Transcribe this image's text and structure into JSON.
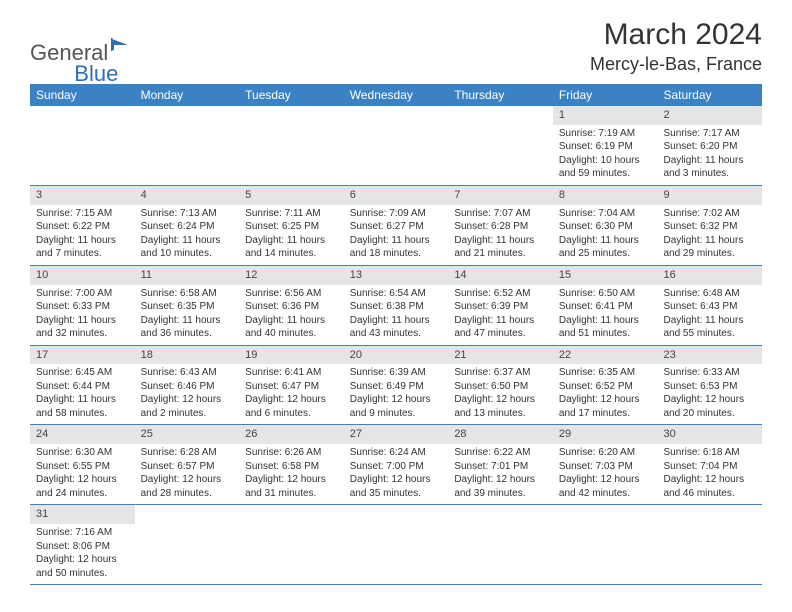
{
  "logo": {
    "text_general": "General",
    "text_blue": "Blue"
  },
  "title": "March 2024",
  "location": "Mercy-le-Bas, France",
  "colors": {
    "header_bg": "#3b82c4",
    "header_text": "#ffffff",
    "daynum_bg": "#e5e5e5",
    "border": "#3b82c4",
    "text": "#333333",
    "logo_gray": "#555555",
    "logo_blue": "#2d6fb5"
  },
  "day_headers": [
    "Sunday",
    "Monday",
    "Tuesday",
    "Wednesday",
    "Thursday",
    "Friday",
    "Saturday"
  ],
  "weeks": [
    [
      null,
      null,
      null,
      null,
      null,
      {
        "n": "1",
        "sr": "Sunrise: 7:19 AM",
        "ss": "Sunset: 6:19 PM",
        "d1": "Daylight: 10 hours",
        "d2": "and 59 minutes."
      },
      {
        "n": "2",
        "sr": "Sunrise: 7:17 AM",
        "ss": "Sunset: 6:20 PM",
        "d1": "Daylight: 11 hours",
        "d2": "and 3 minutes."
      }
    ],
    [
      {
        "n": "3",
        "sr": "Sunrise: 7:15 AM",
        "ss": "Sunset: 6:22 PM",
        "d1": "Daylight: 11 hours",
        "d2": "and 7 minutes."
      },
      {
        "n": "4",
        "sr": "Sunrise: 7:13 AM",
        "ss": "Sunset: 6:24 PM",
        "d1": "Daylight: 11 hours",
        "d2": "and 10 minutes."
      },
      {
        "n": "5",
        "sr": "Sunrise: 7:11 AM",
        "ss": "Sunset: 6:25 PM",
        "d1": "Daylight: 11 hours",
        "d2": "and 14 minutes."
      },
      {
        "n": "6",
        "sr": "Sunrise: 7:09 AM",
        "ss": "Sunset: 6:27 PM",
        "d1": "Daylight: 11 hours",
        "d2": "and 18 minutes."
      },
      {
        "n": "7",
        "sr": "Sunrise: 7:07 AM",
        "ss": "Sunset: 6:28 PM",
        "d1": "Daylight: 11 hours",
        "d2": "and 21 minutes."
      },
      {
        "n": "8",
        "sr": "Sunrise: 7:04 AM",
        "ss": "Sunset: 6:30 PM",
        "d1": "Daylight: 11 hours",
        "d2": "and 25 minutes."
      },
      {
        "n": "9",
        "sr": "Sunrise: 7:02 AM",
        "ss": "Sunset: 6:32 PM",
        "d1": "Daylight: 11 hours",
        "d2": "and 29 minutes."
      }
    ],
    [
      {
        "n": "10",
        "sr": "Sunrise: 7:00 AM",
        "ss": "Sunset: 6:33 PM",
        "d1": "Daylight: 11 hours",
        "d2": "and 32 minutes."
      },
      {
        "n": "11",
        "sr": "Sunrise: 6:58 AM",
        "ss": "Sunset: 6:35 PM",
        "d1": "Daylight: 11 hours",
        "d2": "and 36 minutes."
      },
      {
        "n": "12",
        "sr": "Sunrise: 6:56 AM",
        "ss": "Sunset: 6:36 PM",
        "d1": "Daylight: 11 hours",
        "d2": "and 40 minutes."
      },
      {
        "n": "13",
        "sr": "Sunrise: 6:54 AM",
        "ss": "Sunset: 6:38 PM",
        "d1": "Daylight: 11 hours",
        "d2": "and 43 minutes."
      },
      {
        "n": "14",
        "sr": "Sunrise: 6:52 AM",
        "ss": "Sunset: 6:39 PM",
        "d1": "Daylight: 11 hours",
        "d2": "and 47 minutes."
      },
      {
        "n": "15",
        "sr": "Sunrise: 6:50 AM",
        "ss": "Sunset: 6:41 PM",
        "d1": "Daylight: 11 hours",
        "d2": "and 51 minutes."
      },
      {
        "n": "16",
        "sr": "Sunrise: 6:48 AM",
        "ss": "Sunset: 6:43 PM",
        "d1": "Daylight: 11 hours",
        "d2": "and 55 minutes."
      }
    ],
    [
      {
        "n": "17",
        "sr": "Sunrise: 6:45 AM",
        "ss": "Sunset: 6:44 PM",
        "d1": "Daylight: 11 hours",
        "d2": "and 58 minutes."
      },
      {
        "n": "18",
        "sr": "Sunrise: 6:43 AM",
        "ss": "Sunset: 6:46 PM",
        "d1": "Daylight: 12 hours",
        "d2": "and 2 minutes."
      },
      {
        "n": "19",
        "sr": "Sunrise: 6:41 AM",
        "ss": "Sunset: 6:47 PM",
        "d1": "Daylight: 12 hours",
        "d2": "and 6 minutes."
      },
      {
        "n": "20",
        "sr": "Sunrise: 6:39 AM",
        "ss": "Sunset: 6:49 PM",
        "d1": "Daylight: 12 hours",
        "d2": "and 9 minutes."
      },
      {
        "n": "21",
        "sr": "Sunrise: 6:37 AM",
        "ss": "Sunset: 6:50 PM",
        "d1": "Daylight: 12 hours",
        "d2": "and 13 minutes."
      },
      {
        "n": "22",
        "sr": "Sunrise: 6:35 AM",
        "ss": "Sunset: 6:52 PM",
        "d1": "Daylight: 12 hours",
        "d2": "and 17 minutes."
      },
      {
        "n": "23",
        "sr": "Sunrise: 6:33 AM",
        "ss": "Sunset: 6:53 PM",
        "d1": "Daylight: 12 hours",
        "d2": "and 20 minutes."
      }
    ],
    [
      {
        "n": "24",
        "sr": "Sunrise: 6:30 AM",
        "ss": "Sunset: 6:55 PM",
        "d1": "Daylight: 12 hours",
        "d2": "and 24 minutes."
      },
      {
        "n": "25",
        "sr": "Sunrise: 6:28 AM",
        "ss": "Sunset: 6:57 PM",
        "d1": "Daylight: 12 hours",
        "d2": "and 28 minutes."
      },
      {
        "n": "26",
        "sr": "Sunrise: 6:26 AM",
        "ss": "Sunset: 6:58 PM",
        "d1": "Daylight: 12 hours",
        "d2": "and 31 minutes."
      },
      {
        "n": "27",
        "sr": "Sunrise: 6:24 AM",
        "ss": "Sunset: 7:00 PM",
        "d1": "Daylight: 12 hours",
        "d2": "and 35 minutes."
      },
      {
        "n": "28",
        "sr": "Sunrise: 6:22 AM",
        "ss": "Sunset: 7:01 PM",
        "d1": "Daylight: 12 hours",
        "d2": "and 39 minutes."
      },
      {
        "n": "29",
        "sr": "Sunrise: 6:20 AM",
        "ss": "Sunset: 7:03 PM",
        "d1": "Daylight: 12 hours",
        "d2": "and 42 minutes."
      },
      {
        "n": "30",
        "sr": "Sunrise: 6:18 AM",
        "ss": "Sunset: 7:04 PM",
        "d1": "Daylight: 12 hours",
        "d2": "and 46 minutes."
      }
    ],
    [
      {
        "n": "31",
        "sr": "Sunrise: 7:16 AM",
        "ss": "Sunset: 8:06 PM",
        "d1": "Daylight: 12 hours",
        "d2": "and 50 minutes."
      },
      null,
      null,
      null,
      null,
      null,
      null
    ]
  ]
}
